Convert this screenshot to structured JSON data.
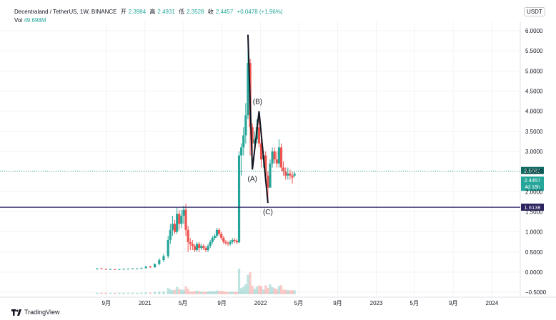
{
  "header": {
    "symbol": "Decentraland / TetherUS, 1W, BINANCE",
    "open_label": "开",
    "open": "2.3984",
    "high_label": "高",
    "high": "2.4931",
    "low_label": "低",
    "low": "2.3528",
    "close_label": "收",
    "close": "2.4457",
    "change": "+0.0478 (+1.96%)",
    "vol_label": "Vol",
    "vol_value": "49.698M",
    "currency": "USDT"
  },
  "price_tags": {
    "resistance": "2.5081",
    "last": "2.4457",
    "countdown": "4d 16h",
    "support": "1.6138"
  },
  "wave_labels": [
    "(A)",
    "(B)",
    "(C)"
  ],
  "branding": "TradingView",
  "colors": {
    "up": "#26a69a",
    "down": "#ef5350",
    "support_line": "#2a2360",
    "resistance_line": "#26a69a"
  },
  "chart_data": {
    "type": "candlestick",
    "y_axis_ticks": [
      "6.0000",
      "5.5000",
      "5.0000",
      "4.5000",
      "4.0000",
      "3.5000",
      "3.0000",
      "2.5000",
      "2.0000",
      "1.5000",
      "1.0000",
      "0.5000",
      "0.0000",
      "−0.5000"
    ],
    "x_axis_ticks": [
      "9月",
      "2021",
      "5月",
      "9月",
      "2022",
      "5月",
      "9月",
      "2023",
      "5月",
      "9月",
      "2024"
    ],
    "ylim": [
      -0.6,
      6.6
    ],
    "levels": {
      "resistance": 2.5081,
      "support": 1.6138,
      "last": 2.4457
    },
    "wave_path": [
      {
        "label": "top",
        "date": "2021-11-22",
        "price": 5.9
      },
      {
        "label": "(A)",
        "date": "2021-12-06",
        "price": 2.55
      },
      {
        "label": "(B)",
        "date": "2021-12-27",
        "price": 4.0
      },
      {
        "label": "(C)",
        "date": "2022-01-24",
        "price": 1.72
      }
    ],
    "candles": [
      [
        "2020-08-03",
        0.08,
        0.1,
        0.06,
        0.09
      ],
      [
        "2020-08-17",
        0.09,
        0.11,
        0.07,
        0.08
      ],
      [
        "2020-08-31",
        0.08,
        0.09,
        0.06,
        0.07
      ],
      [
        "2020-09-14",
        0.07,
        0.08,
        0.06,
        0.075
      ],
      [
        "2020-09-28",
        0.075,
        0.08,
        0.06,
        0.07
      ],
      [
        "2020-10-12",
        0.07,
        0.08,
        0.06,
        0.075
      ],
      [
        "2020-10-26",
        0.075,
        0.09,
        0.07,
        0.08
      ],
      [
        "2020-11-09",
        0.08,
        0.09,
        0.07,
        0.085
      ],
      [
        "2020-11-23",
        0.085,
        0.1,
        0.075,
        0.09
      ],
      [
        "2020-12-07",
        0.09,
        0.1,
        0.08,
        0.09
      ],
      [
        "2020-12-21",
        0.09,
        0.12,
        0.08,
        0.1
      ],
      [
        "2021-01-04",
        0.1,
        0.15,
        0.09,
        0.14
      ],
      [
        "2021-01-18",
        0.14,
        0.16,
        0.11,
        0.12
      ],
      [
        "2021-02-01",
        0.12,
        0.22,
        0.11,
        0.2
      ],
      [
        "2021-02-15",
        0.2,
        0.35,
        0.17,
        0.3
      ],
      [
        "2021-03-01",
        0.3,
        0.45,
        0.25,
        0.4
      ],
      [
        "2021-03-15",
        0.4,
        0.9,
        0.35,
        0.8
      ],
      [
        "2021-03-22",
        0.8,
        1.2,
        0.7,
        1.05
      ],
      [
        "2021-03-29",
        1.05,
        1.4,
        0.9,
        1.2
      ],
      [
        "2021-04-05",
        1.2,
        1.3,
        0.95,
        1.0
      ],
      [
        "2021-04-12",
        1.0,
        1.6,
        0.95,
        1.45
      ],
      [
        "2021-04-19",
        1.45,
        1.55,
        1.05,
        1.2
      ],
      [
        "2021-04-26",
        1.2,
        1.55,
        1.1,
        1.4
      ],
      [
        "2021-05-03",
        1.4,
        1.65,
        1.2,
        1.55
      ],
      [
        "2021-05-10",
        1.55,
        1.7,
        0.9,
        1.05
      ],
      [
        "2021-05-17",
        1.05,
        1.15,
        0.5,
        0.75
      ],
      [
        "2021-05-24",
        0.75,
        0.85,
        0.55,
        0.7
      ],
      [
        "2021-05-31",
        0.7,
        0.8,
        0.55,
        0.65
      ],
      [
        "2021-06-07",
        0.65,
        0.7,
        0.5,
        0.55
      ],
      [
        "2021-06-14",
        0.55,
        0.75,
        0.5,
        0.7
      ],
      [
        "2021-06-21",
        0.7,
        0.75,
        0.5,
        0.6
      ],
      [
        "2021-06-28",
        0.6,
        0.7,
        0.55,
        0.65
      ],
      [
        "2021-07-05",
        0.65,
        0.7,
        0.55,
        0.6
      ],
      [
        "2021-07-12",
        0.6,
        0.65,
        0.5,
        0.55
      ],
      [
        "2021-07-19",
        0.55,
        0.7,
        0.5,
        0.65
      ],
      [
        "2021-07-26",
        0.65,
        0.8,
        0.6,
        0.75
      ],
      [
        "2021-08-02",
        0.75,
        0.9,
        0.7,
        0.85
      ],
      [
        "2021-08-09",
        0.85,
        0.95,
        0.8,
        0.9
      ],
      [
        "2021-08-16",
        0.9,
        1.1,
        0.85,
        1.05
      ],
      [
        "2021-08-23",
        1.05,
        1.1,
        0.9,
        0.95
      ],
      [
        "2021-08-30",
        0.95,
        1.0,
        0.8,
        0.85
      ],
      [
        "2021-09-06",
        0.85,
        0.9,
        0.7,
        0.75
      ],
      [
        "2021-09-13",
        0.75,
        0.8,
        0.68,
        0.72
      ],
      [
        "2021-09-20",
        0.72,
        0.78,
        0.65,
        0.7
      ],
      [
        "2021-09-27",
        0.7,
        0.8,
        0.65,
        0.75
      ],
      [
        "2021-10-04",
        0.75,
        0.85,
        0.7,
        0.8
      ],
      [
        "2021-10-11",
        0.8,
        0.85,
        0.72,
        0.78
      ],
      [
        "2021-10-18",
        0.78,
        0.82,
        0.7,
        0.74
      ],
      [
        "2021-10-25",
        0.74,
        3.0,
        0.72,
        2.9
      ],
      [
        "2021-11-01",
        2.9,
        3.2,
        2.4,
        3.1
      ],
      [
        "2021-11-08",
        3.1,
        3.6,
        2.9,
        3.4
      ],
      [
        "2021-11-15",
        3.4,
        4.2,
        3.2,
        3.9
      ],
      [
        "2021-11-22",
        3.9,
        5.9,
        3.8,
        5.2
      ],
      [
        "2021-11-29",
        5.2,
        5.3,
        2.9,
        3.6
      ],
      [
        "2021-12-06",
        3.6,
        3.7,
        2.55,
        3.2
      ],
      [
        "2021-12-13",
        3.2,
        3.5,
        3.0,
        3.3
      ],
      [
        "2021-12-20",
        3.3,
        3.8,
        3.2,
        3.6
      ],
      [
        "2021-12-27",
        3.6,
        4.0,
        3.1,
        3.2
      ],
      [
        "2022-01-03",
        3.2,
        3.3,
        2.6,
        2.8
      ],
      [
        "2022-01-10",
        2.8,
        3.0,
        2.6,
        2.9
      ],
      [
        "2022-01-17",
        2.9,
        3.0,
        2.3,
        2.4
      ],
      [
        "2022-01-24",
        2.4,
        2.5,
        1.72,
        2.1
      ],
      [
        "2022-01-31",
        2.1,
        2.8,
        2.1,
        2.7
      ],
      [
        "2022-02-07",
        2.7,
        3.1,
        2.6,
        3.0
      ],
      [
        "2022-02-14",
        3.0,
        3.1,
        2.7,
        2.8
      ],
      [
        "2022-02-21",
        2.8,
        3.0,
        2.6,
        2.7
      ],
      [
        "2022-02-28",
        2.7,
        3.3,
        2.6,
        3.1
      ],
      [
        "2022-03-07",
        3.1,
        3.2,
        2.5,
        2.6
      ],
      [
        "2022-03-14",
        2.6,
        2.75,
        2.4,
        2.5
      ],
      [
        "2022-03-21",
        2.5,
        2.6,
        2.3,
        2.4
      ],
      [
        "2022-03-28",
        2.4,
        2.6,
        2.3,
        2.45
      ],
      [
        "2022-04-04",
        2.45,
        2.55,
        2.3,
        2.4
      ],
      [
        "2022-04-11",
        2.4,
        2.5,
        2.2,
        2.35
      ],
      [
        "2022-04-18",
        2.3984,
        2.4931,
        2.3528,
        2.4457
      ]
    ]
  }
}
